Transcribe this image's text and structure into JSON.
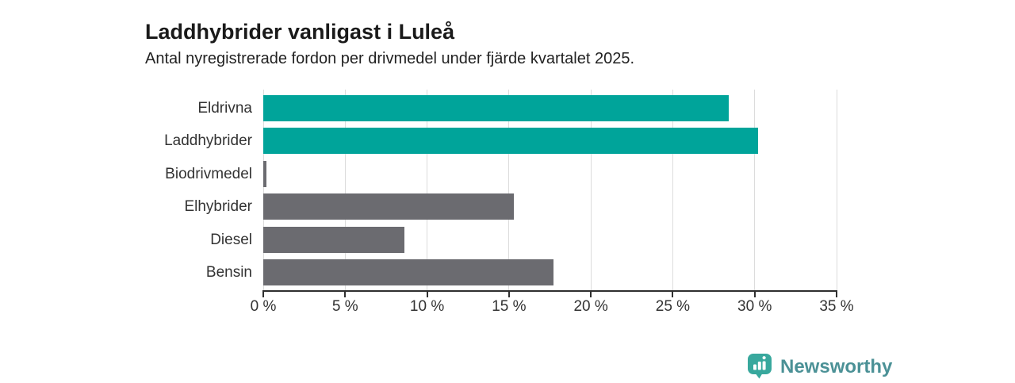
{
  "header": {
    "title": "Laddhybrider vanligast i Luleå",
    "subtitle": "Antal nyregistrerade fordon per drivmedel under fjärde kvartalet 2025."
  },
  "chart_data": {
    "type": "bar",
    "orientation": "horizontal",
    "title": "Laddhybrider vanligast i Luleå",
    "subtitle": "Antal nyregistrerade fordon per drivmedel under fjärde kvartalet 2025.",
    "categories": [
      "Eldrivna",
      "Laddhybrider",
      "Biodrivmedel",
      "Elhybrider",
      "Diesel",
      "Bensin"
    ],
    "values": [
      28.4,
      30.2,
      0.2,
      15.3,
      8.6,
      17.7
    ],
    "unit": "%",
    "bar_colors": [
      "#00a49a",
      "#00a49a",
      "#6b6b70",
      "#6b6b70",
      "#6b6b70",
      "#6b6b70"
    ],
    "xlim": [
      0,
      35
    ],
    "x_ticks": [
      0,
      5,
      10,
      15,
      20,
      25,
      30,
      35
    ],
    "x_tick_labels": [
      "0 %",
      "5 %",
      "10 %",
      "15 %",
      "20 %",
      "25 %",
      "30 %",
      "35 %"
    ],
    "grid": "vertical-only",
    "legend": "none"
  },
  "colors": {
    "accent_teal": "#00a49a",
    "bar_gray": "#6b6b70",
    "gridline": "#dcdcdc",
    "axis": "#2f2f2f",
    "text": "#333333",
    "logo_bubble": "#38a89d",
    "logo_text": "#4b9196"
  },
  "branding": {
    "logo_text": "Newsworthy",
    "logo_icon": "newsworthy-bar-chart-bubble-icon"
  }
}
